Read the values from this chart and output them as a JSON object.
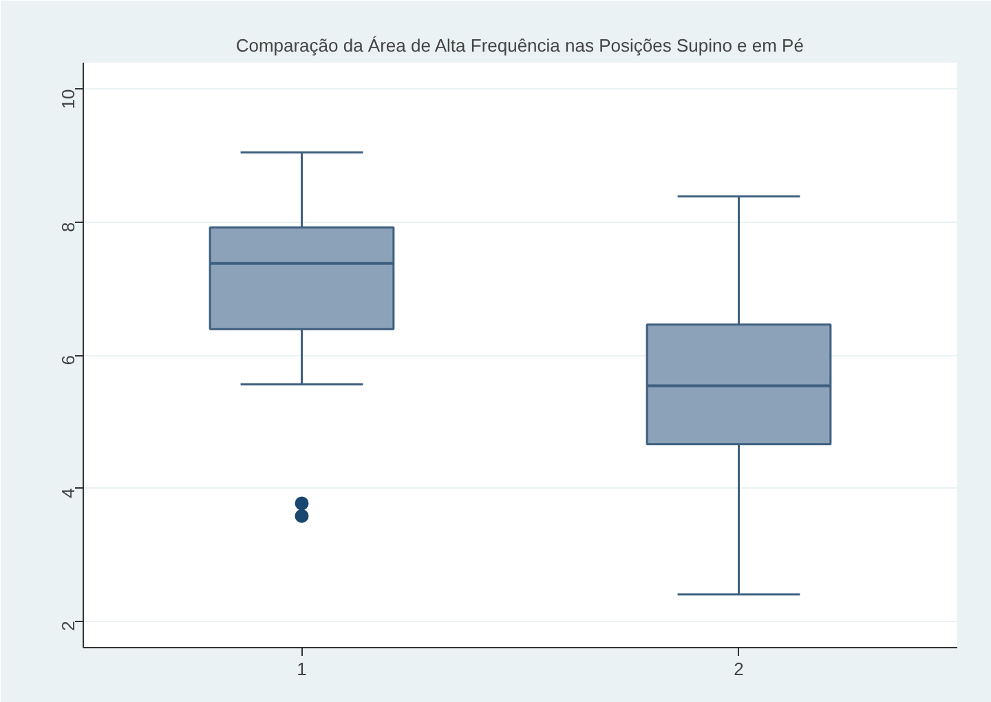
{
  "chart_data": {
    "type": "box",
    "title": "Comparação da Área de Alta Frequência nas Posições Supino e em Pé",
    "categories": [
      "1",
      "2"
    ],
    "series": [
      {
        "color": "#8ca2b8",
        "boxes": [
          {
            "low": 5.56,
            "q1": 6.39,
            "median": 7.38,
            "q3": 7.92,
            "high": 9.05,
            "outliers": [
              3.77,
              3.58
            ]
          },
          {
            "low": 2.4,
            "q1": 4.66,
            "median": 5.54,
            "q3": 6.46,
            "high": 8.39
          }
        ]
      }
    ],
    "ylim": [
      1.6,
      10.4
    ],
    "yticks": [
      2,
      4,
      6,
      8,
      10
    ],
    "grid": "y"
  }
}
